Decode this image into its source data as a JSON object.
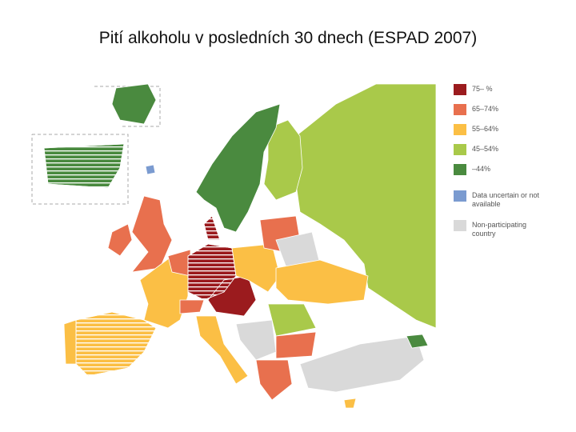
{
  "title": "Pití alkoholu v posledních 30 dnech (ESPAD 2007)",
  "legend": [
    {
      "label": "75– %",
      "color": "#9b1b1e"
    },
    {
      "label": "65–74%",
      "color": "#e8704e"
    },
    {
      "label": "55–64%",
      "color": "#fbbf45"
    },
    {
      "label": "45–54%",
      "color": "#a9c94a"
    },
    {
      "label": "–44%",
      "color": "#4a8a3f"
    },
    {
      "label": "Data uncertain or not available",
      "color": "#7b9bd0"
    },
    {
      "label": "Non-participating country",
      "color": "#d9d9d9"
    }
  ]
}
